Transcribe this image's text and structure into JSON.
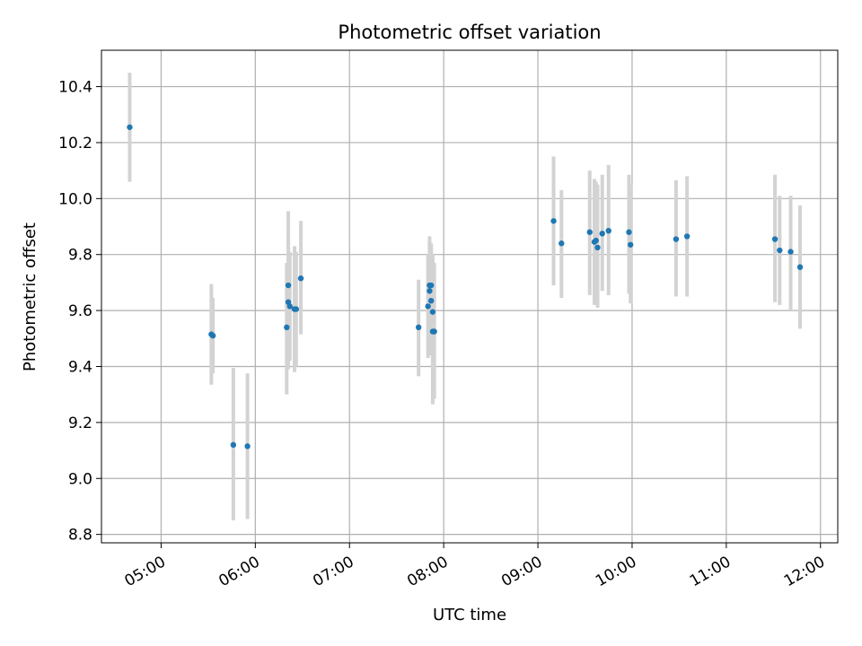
{
  "chart_data": {
    "type": "scatter",
    "title": "Photometric offset variation",
    "xlabel": "UTC time",
    "ylabel": "Photometric offset",
    "xlim": [
      "04:22",
      "12:11"
    ],
    "ylim": [
      8.77,
      10.53
    ],
    "x_ticks": [
      "05:00",
      "06:00",
      "07:00",
      "08:00",
      "09:00",
      "10:00",
      "11:00",
      "12:00"
    ],
    "y_ticks": [
      8.8,
      9.0,
      9.2,
      9.4,
      9.6,
      9.8,
      10.0,
      10.2,
      10.4
    ],
    "grid": true,
    "point_color": "#1f77b4",
    "errorbar_color": "#d3d3d3",
    "series": [
      {
        "points": [
          {
            "t": "04:40",
            "y": 10.255,
            "lo": 10.06,
            "hi": 10.45
          },
          {
            "t": "05:32",
            "y": 9.515,
            "lo": 9.335,
            "hi": 9.695
          },
          {
            "t": "05:33",
            "y": 9.51,
            "lo": 9.375,
            "hi": 9.645
          },
          {
            "t": "05:46",
            "y": 9.12,
            "lo": 8.85,
            "hi": 9.395
          },
          {
            "t": "05:55",
            "y": 9.115,
            "lo": 8.855,
            "hi": 9.375
          },
          {
            "t": "06:20",
            "y": 9.54,
            "lo": 9.3,
            "hi": 9.77
          },
          {
            "t": "06:21",
            "y": 9.69,
            "lo": 9.43,
            "hi": 9.955
          },
          {
            "t": "06:21",
            "y": 9.63,
            "lo": 9.39,
            "hi": 9.87
          },
          {
            "t": "06:22",
            "y": 9.615,
            "lo": 9.42,
            "hi": 9.81
          },
          {
            "t": "06:25",
            "y": 9.605,
            "lo": 9.38,
            "hi": 9.83
          },
          {
            "t": "06:26",
            "y": 9.605,
            "lo": 9.4,
            "hi": 9.81
          },
          {
            "t": "06:29",
            "y": 9.715,
            "lo": 9.515,
            "hi": 9.92
          },
          {
            "t": "07:44",
            "y": 9.54,
            "lo": 9.365,
            "hi": 9.71
          },
          {
            "t": "07:50",
            "y": 9.615,
            "lo": 9.43,
            "hi": 9.8
          },
          {
            "t": "07:51",
            "y": 9.69,
            "lo": 9.515,
            "hi": 9.865
          },
          {
            "t": "07:51",
            "y": 9.67,
            "lo": 9.49,
            "hi": 9.85
          },
          {
            "t": "07:52",
            "y": 9.69,
            "lo": 9.46,
            "hi": 9.84
          },
          {
            "t": "07:52",
            "y": 9.635,
            "lo": 9.44,
            "hi": 9.83
          },
          {
            "t": "07:53",
            "y": 9.595,
            "lo": 9.4,
            "hi": 9.8
          },
          {
            "t": "07:53",
            "y": 9.525,
            "lo": 9.265,
            "hi": 9.79
          },
          {
            "t": "07:54",
            "y": 9.525,
            "lo": 9.285,
            "hi": 9.77
          },
          {
            "t": "09:10",
            "y": 9.92,
            "lo": 9.69,
            "hi": 10.15
          },
          {
            "t": "09:15",
            "y": 9.84,
            "lo": 9.645,
            "hi": 10.03
          },
          {
            "t": "09:33",
            "y": 9.88,
            "lo": 9.655,
            "hi": 10.1
          },
          {
            "t": "09:36",
            "y": 9.845,
            "lo": 9.62,
            "hi": 10.07
          },
          {
            "t": "09:37",
            "y": 9.85,
            "lo": 9.64,
            "hi": 10.06
          },
          {
            "t": "09:38",
            "y": 9.825,
            "lo": 9.61,
            "hi": 10.05
          },
          {
            "t": "09:41",
            "y": 9.875,
            "lo": 9.67,
            "hi": 10.085
          },
          {
            "t": "09:45",
            "y": 9.885,
            "lo": 9.655,
            "hi": 10.12
          },
          {
            "t": "09:58",
            "y": 9.88,
            "lo": 9.66,
            "hi": 10.085
          },
          {
            "t": "09:59",
            "y": 9.835,
            "lo": 9.625,
            "hi": 10.05
          },
          {
            "t": "10:28",
            "y": 9.855,
            "lo": 9.65,
            "hi": 10.065
          },
          {
            "t": "10:35",
            "y": 9.865,
            "lo": 9.65,
            "hi": 10.08
          },
          {
            "t": "11:31",
            "y": 9.855,
            "lo": 9.63,
            "hi": 10.085
          },
          {
            "t": "11:34",
            "y": 9.815,
            "lo": 9.62,
            "hi": 10.01
          },
          {
            "t": "11:41",
            "y": 9.81,
            "lo": 9.6,
            "hi": 10.01
          },
          {
            "t": "11:47",
            "y": 9.755,
            "lo": 9.535,
            "hi": 9.975
          }
        ]
      }
    ]
  }
}
